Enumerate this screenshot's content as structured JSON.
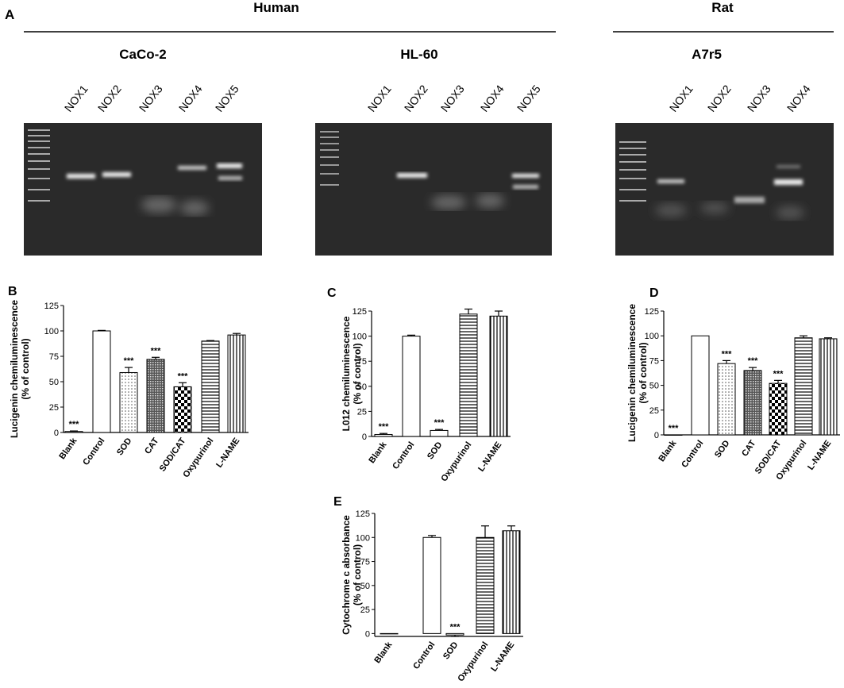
{
  "panel_a": {
    "label": "A",
    "species": [
      "Human",
      "Rat"
    ],
    "gels": [
      {
        "title": "CaCo-2",
        "lanes": [
          "NOX1",
          "NOX2",
          "NOX3",
          "NOX4",
          "NOX5"
        ]
      },
      {
        "title": "HL-60",
        "lanes": [
          "NOX1",
          "NOX2",
          "NOX3",
          "NOX4",
          "NOX5"
        ]
      },
      {
        "title": "A7r5",
        "lanes": [
          "NOX1",
          "NOX2",
          "NOX3",
          "NOX4"
        ]
      }
    ]
  },
  "chart_data": [
    {
      "type": "bar",
      "panel": "B",
      "ylabel": [
        "Lucigenin chemiluminescence",
        "(% of control)"
      ],
      "categories": [
        "Blank",
        "Control",
        "SOD",
        "CAT",
        "SOD/CAT",
        "Oxypurinol",
        "L-NAME"
      ],
      "values": [
        1,
        100,
        59,
        72,
        45,
        90,
        96
      ],
      "errors": [
        0.5,
        0.5,
        5,
        2,
        4,
        0.5,
        1.5
      ],
      "value_annotations": [
        "***",
        null,
        "***",
        "***",
        "***",
        null,
        null
      ],
      "patterns": [
        "none",
        "none",
        "dots",
        "fine-check",
        "checker",
        "hlines",
        "vlines"
      ],
      "ylim": [
        0,
        125
      ],
      "yticks": [
        0,
        25,
        50,
        75,
        100,
        125
      ]
    },
    {
      "type": "bar",
      "panel": "C",
      "ylabel": [
        "L012 chemiluminescence",
        "(% of control)"
      ],
      "categories": [
        "Blank",
        "Control",
        "SOD",
        "Oxypurinol",
        "L-NAME"
      ],
      "values": [
        2,
        100,
        6,
        122,
        120
      ],
      "errors": [
        1,
        1,
        1,
        5,
        5
      ],
      "value_annotations": [
        "***",
        null,
        "***",
        null,
        null
      ],
      "patterns": [
        "none",
        "none",
        "none",
        "hlines",
        "vlines"
      ],
      "ylim": [
        0,
        125
      ],
      "yticks": [
        0,
        25,
        50,
        75,
        100,
        125
      ]
    },
    {
      "type": "bar",
      "panel": "D",
      "ylabel": [
        "Lucigenin chemiluminescence",
        "(% of control)"
      ],
      "categories": [
        "Blank",
        "Control",
        "SOD",
        "CAT",
        "SOD/CAT",
        "Oxypurinol",
        "L-NAME"
      ],
      "values": [
        0,
        100,
        72,
        65,
        52,
        98,
        97
      ],
      "errors": [
        0,
        0,
        3,
        3,
        3,
        2,
        1
      ],
      "value_annotations": [
        "***",
        null,
        "***",
        "***",
        "***",
        null,
        null
      ],
      "patterns": [
        "none",
        "none",
        "dots",
        "fine-check",
        "checker",
        "hlines",
        "vlines"
      ],
      "ylim": [
        0,
        125
      ],
      "yticks": [
        0,
        25,
        50,
        75,
        100,
        125
      ]
    },
    {
      "type": "bar",
      "panel": "E",
      "ylabel": [
        "Cytochrome c absorbance",
        "(% of control)"
      ],
      "categories": [
        "Blank",
        "Control",
        "SOD",
        "Oxypurinol",
        "L-NAME"
      ],
      "values": [
        0,
        100,
        -1.5,
        100,
        107
      ],
      "errors": [
        0,
        2,
        1.5,
        12,
        5
      ],
      "value_annotations": [
        null,
        null,
        "***",
        null,
        null
      ],
      "patterns": [
        "none",
        "none",
        "none",
        "hlines",
        "vlines"
      ],
      "ylim": [
        -3,
        125
      ],
      "yticks": [
        0,
        25,
        50,
        75,
        100,
        125
      ]
    }
  ]
}
